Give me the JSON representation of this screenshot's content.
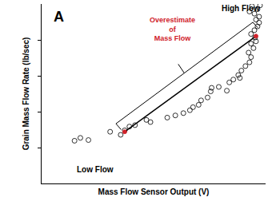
{
  "chart_data": {
    "type": "scatter",
    "xlabel": "Mass Flow Sensor Output (V)",
    "ylabel": "Grain Mass Flow Rate (lb/sec)",
    "annotations": [
      "A",
      "High Flow",
      "Low Flow",
      "Overestimate\nof\nMass Flow"
    ],
    "annotation_colors": [
      "#000000",
      "#000000",
      "#000000",
      "#d0212a"
    ],
    "xlim": [
      0,
      10
    ],
    "ylim": [
      0,
      10
    ],
    "yticks": [
      2,
      4,
      6,
      8
    ],
    "tick_labels": false,
    "grid": false,
    "series": [
      {
        "type": "scatter",
        "marker": "circle-open",
        "color": "#000000",
        "x": [
          1.47,
          1.73,
          2.09,
          3.06,
          3.53,
          3.71,
          3.92,
          4.17,
          4.68,
          4.86,
          5.61,
          5.97,
          6.33,
          6.62,
          6.76,
          7.01,
          7.12,
          7.41,
          7.55,
          7.59,
          7.91,
          8.27,
          8.38,
          8.56,
          8.78,
          8.85,
          8.92,
          9.1,
          9.28,
          9.35,
          9.24,
          9.46,
          9.35,
          9.57,
          9.53,
          9.35,
          9.5,
          9.64,
          9.71,
          9.57,
          9.71,
          9.5,
          9.28,
          9.64,
          9.75,
          9.39
        ],
        "values": [
          2.38,
          2.54,
          2.42,
          2.88,
          2.71,
          2.96,
          3.17,
          3.25,
          3.54,
          3.42,
          3.67,
          3.79,
          3.92,
          4.08,
          4.25,
          4.38,
          4.63,
          4.79,
          5.13,
          5.33,
          5.38,
          5.17,
          5.63,
          5.79,
          6.04,
          5.88,
          6.29,
          6.54,
          6.75,
          7.04,
          7.29,
          7.54,
          7.79,
          7.92,
          8.13,
          8.33,
          8.54,
          8.75,
          8.96,
          9.13,
          9.29,
          9.46,
          9.58,
          9.71,
          9.92,
          9.88
        ]
      },
      {
        "type": "line",
        "line_style": "solid",
        "color": "#000000",
        "x": [
          3.71,
          9.57
        ],
        "values": [
          2.88,
          8.21
        ]
      },
      {
        "type": "scatter",
        "marker": "circle",
        "color": "#d0212a",
        "x": [
          3.71,
          9.57
        ],
        "values": [
          2.88,
          8.21
        ]
      }
    ]
  }
}
